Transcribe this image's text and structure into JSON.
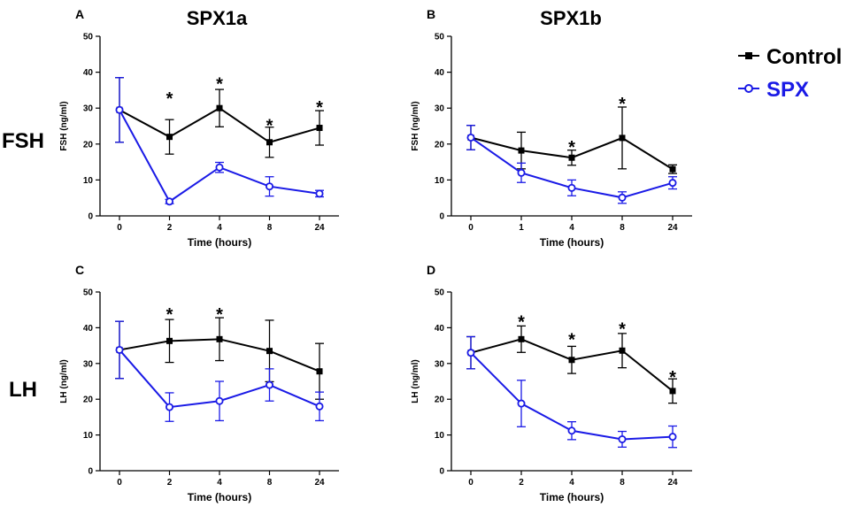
{
  "figure": {
    "column_titles": [
      "SPX1a",
      "SPX1b"
    ],
    "row_labels": [
      "FSH",
      "LH"
    ],
    "legend": [
      {
        "label": "Control",
        "color": "#000000",
        "marker": "filled-square"
      },
      {
        "label": "SPX",
        "color": "#1a1ae6",
        "marker": "open-circle"
      }
    ]
  },
  "chart_data": [
    {
      "panel": "A",
      "type": "line",
      "title": "SPX1a",
      "xlabel": "Time (hours)",
      "ylabel": "FSH (ng/ml)",
      "categories": [
        "0",
        "2",
        "4",
        "8",
        "24"
      ],
      "ylim": [
        0,
        50
      ],
      "yticks": [
        0,
        10,
        20,
        30,
        40,
        50
      ],
      "series": [
        {
          "name": "Control",
          "values": [
            29.5,
            22,
            30,
            20.5,
            24.5
          ],
          "err": [
            9,
            4.8,
            5.2,
            4.2,
            4.8
          ]
        },
        {
          "name": "SPX",
          "values": [
            29.5,
            4,
            13.5,
            8.2,
            6.2
          ],
          "err": [
            9,
            0.6,
            1.4,
            2.7,
            0.9
          ]
        }
      ],
      "significance": [
        "",
        "*",
        "*",
        "*",
        "*"
      ],
      "significance_y": [
        null,
        34,
        38,
        26.5,
        31.5
      ]
    },
    {
      "panel": "B",
      "type": "line",
      "title": "SPX1b",
      "xlabel": "Time (hours)",
      "ylabel": "FSH (ng/ml)",
      "categories": [
        "0",
        "1",
        "4",
        "8",
        "24"
      ],
      "ylim": [
        0,
        50
      ],
      "yticks": [
        0,
        10,
        20,
        30,
        40,
        50
      ],
      "series": [
        {
          "name": "Control",
          "values": [
            21.8,
            18.2,
            16.2,
            21.7,
            13
          ],
          "err": [
            3.4,
            5.1,
            2.1,
            8.6,
            1.2
          ]
        },
        {
          "name": "SPX",
          "values": [
            21.8,
            12,
            7.8,
            5.1,
            9.2
          ],
          "err": [
            3.4,
            2.7,
            2.2,
            1.6,
            1.7
          ]
        }
      ],
      "significance": [
        "",
        "",
        "*",
        "*",
        ""
      ],
      "significance_y": [
        null,
        null,
        20.5,
        32.5,
        null
      ]
    },
    {
      "panel": "C",
      "type": "line",
      "title": "",
      "xlabel": "Time (hours)",
      "ylabel": "LH (ng/ml)",
      "categories": [
        "0",
        "2",
        "4",
        "8",
        "24"
      ],
      "ylim": [
        0,
        50
      ],
      "yticks": [
        0,
        10,
        20,
        30,
        40,
        50
      ],
      "series": [
        {
          "name": "Control",
          "values": [
            33.8,
            36.3,
            36.8,
            33.5,
            27.8
          ],
          "err": [
            8,
            6,
            6,
            8.6,
            7.8
          ]
        },
        {
          "name": "SPX",
          "values": [
            33.8,
            17.8,
            19.5,
            24,
            18
          ],
          "err": [
            8,
            4,
            5.5,
            4.5,
            4
          ]
        }
      ],
      "significance": [
        "",
        "*",
        "*",
        "",
        ""
      ],
      "significance_y": [
        null,
        45,
        45,
        null,
        null
      ]
    },
    {
      "panel": "D",
      "type": "line",
      "title": "",
      "xlabel": "Time (hours)",
      "ylabel": "LH (ng/ml)",
      "categories": [
        "0",
        "2",
        "4",
        "8",
        "24"
      ],
      "ylim": [
        0,
        50
      ],
      "yticks": [
        0,
        10,
        20,
        30,
        40,
        50
      ],
      "series": [
        {
          "name": "Control",
          "values": [
            33,
            36.8,
            31,
            33.6,
            22.3
          ],
          "err": [
            4.5,
            3.7,
            3.8,
            4.8,
            3.4
          ]
        },
        {
          "name": "SPX",
          "values": [
            33,
            18.8,
            11.2,
            8.8,
            9.5
          ],
          "err": [
            4.5,
            6.5,
            2.5,
            2.2,
            3
          ]
        }
      ],
      "significance": [
        "",
        "*",
        "*",
        "*",
        "*"
      ],
      "significance_y": [
        null,
        43,
        38,
        41,
        27.5
      ]
    }
  ]
}
